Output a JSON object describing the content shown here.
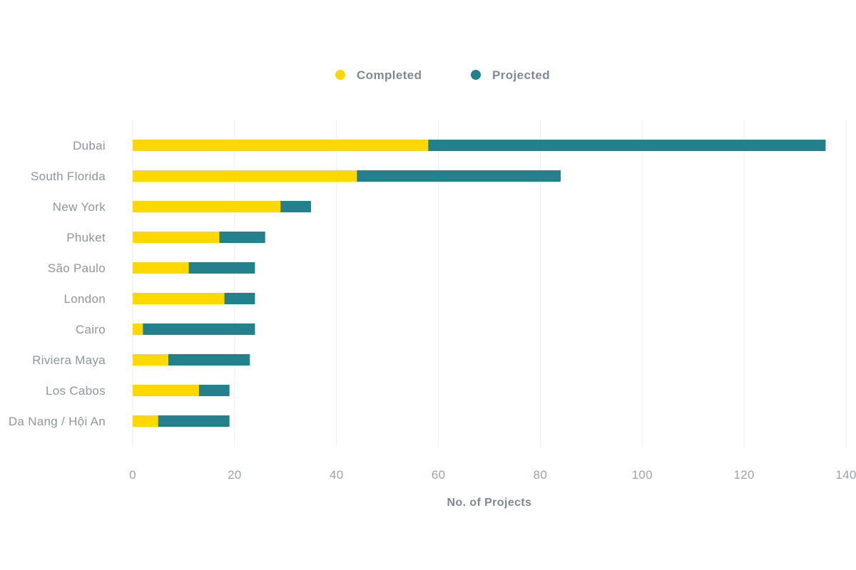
{
  "chart_data": {
    "type": "bar",
    "orientation": "horizontal",
    "stacked": true,
    "categories": [
      "Dubai",
      "South Florida",
      "New York",
      "Phuket",
      "São Paulo",
      "London",
      "Cairo",
      "Riviera Maya",
      "Los Cabos",
      "Da Nang / Hội An"
    ],
    "series": [
      {
        "name": "Completed",
        "color": "#ffd800",
        "values": [
          58,
          44,
          29,
          17,
          11,
          18,
          2,
          7,
          13,
          5
        ]
      },
      {
        "name": "Projected",
        "color": "#23808d",
        "values": [
          78,
          40,
          6,
          9,
          13,
          6,
          22,
          16,
          6,
          14
        ]
      }
    ],
    "xlabel": "No. of Projects",
    "ylabel": "",
    "xlim": [
      0,
      140
    ],
    "xticks": [
      "0",
      "20",
      "40",
      "60",
      "80",
      "100",
      "120",
      "140"
    ],
    "grid": true,
    "legend_position": "top-center"
  }
}
